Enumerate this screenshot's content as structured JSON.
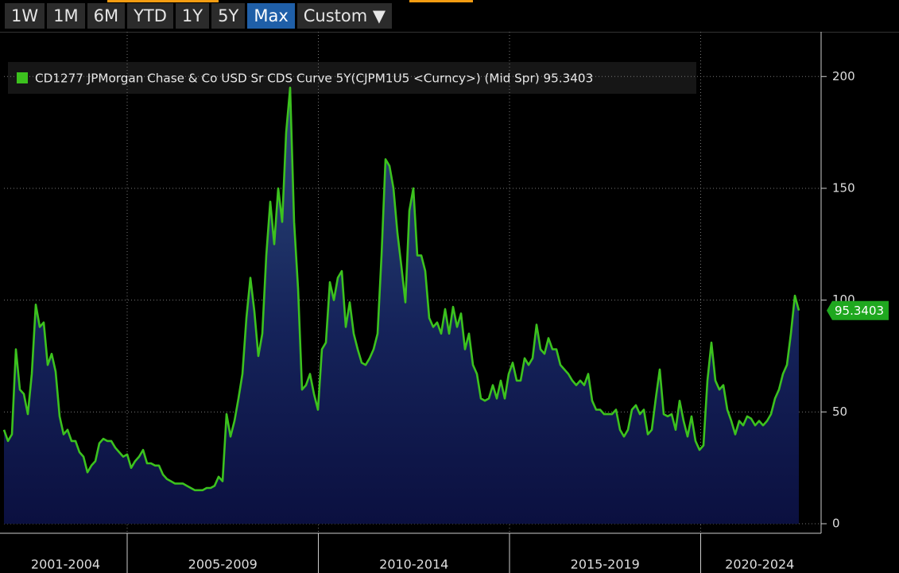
{
  "toolbar": {
    "buttons": [
      "1W",
      "1M",
      "6M",
      "YTD",
      "1Y",
      "5Y",
      "Max",
      "Custom ▼"
    ],
    "active_index": 6
  },
  "chart_data": {
    "type": "area",
    "periods": [
      "2001-2004",
      "2005-2009",
      "2010-2014",
      "2015-2019",
      "2020-2024"
    ],
    "series": [
      {
        "name": "CD1277 JPMorgan Chase & Co USD Sr CDS Curve 5Y(CJPM1U5 <Curncy>) (Mid Spr) 95.3403",
        "color": "#3cc21e",
        "values": [
          42,
          37,
          40,
          78,
          60,
          58,
          49,
          67,
          98,
          88,
          90,
          71,
          76,
          68,
          48,
          40,
          42,
          37,
          37,
          32,
          30,
          23,
          26,
          28,
          36,
          38,
          37,
          37,
          34,
          32,
          30,
          31,
          25,
          28,
          30,
          33,
          27,
          27,
          26,
          26,
          22,
          20,
          19,
          18,
          18,
          18,
          17,
          16,
          15,
          15,
          15,
          16,
          16,
          17,
          21,
          19,
          49,
          39,
          46,
          56,
          67,
          92,
          110,
          95,
          75,
          85,
          120,
          144,
          125,
          150,
          135,
          175,
          195,
          135,
          105,
          60,
          62,
          67,
          58,
          51,
          78,
          81,
          108,
          100,
          110,
          113,
          88,
          99,
          85,
          78,
          72,
          71,
          74,
          78,
          85,
          120,
          163,
          160,
          150,
          130,
          115,
          99,
          140,
          150,
          120,
          120,
          113,
          92,
          88,
          90,
          85,
          96,
          85,
          97,
          88,
          94,
          78,
          85,
          71,
          67,
          56,
          55,
          56,
          62,
          56,
          64,
          56,
          67,
          72,
          64,
          64,
          74,
          71,
          74,
          89,
          78,
          76,
          83,
          78,
          78,
          71,
          69,
          67,
          64,
          62,
          64,
          62,
          67,
          55,
          51,
          51,
          49,
          49,
          49,
          51,
          42,
          39,
          42,
          51,
          53,
          49,
          51,
          40,
          42,
          56,
          69,
          49,
          48,
          49,
          42,
          55,
          46,
          39,
          48,
          37,
          33,
          35,
          64,
          81,
          64,
          60,
          62,
          51,
          46,
          40,
          46,
          44,
          48,
          47,
          44,
          46,
          44,
          46,
          49,
          56,
          60,
          67,
          71,
          85,
          102,
          95.3403
        ]
      }
    ],
    "ylim": [
      0,
      220
    ],
    "yticks": [
      0,
      50,
      100,
      150,
      200
    ],
    "grid": true
  }
}
